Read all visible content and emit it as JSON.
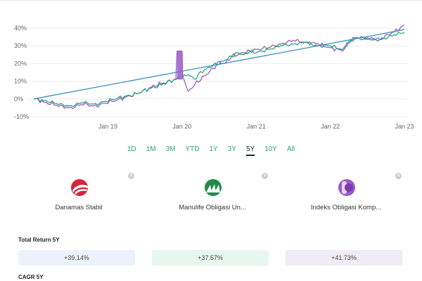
{
  "chart_data": {
    "type": "line",
    "y_ticks": [
      "40%",
      "30%",
      "20%",
      "10%",
      "0%",
      "-10%"
    ],
    "x_ticks": [
      "Jan 19",
      "Jan 20",
      "Jan 21",
      "Jan 22",
      "Jan 23"
    ],
    "x_range": [
      "2018-01",
      "2023-01"
    ],
    "ylim": [
      -10,
      40
    ],
    "grid": true,
    "series": [
      {
        "name": "Danamas Stabil",
        "color": "#3b8fc4",
        "points": [
          [
            0,
            0
          ],
          [
            60,
            39.14
          ]
        ]
      },
      {
        "name": "Manulife Obligasi Unggulan",
        "color": "#2aa67a",
        "points": [
          [
            0,
            0
          ],
          [
            2,
            -1
          ],
          [
            4,
            -3
          ],
          [
            6,
            -4
          ],
          [
            8,
            -2
          ],
          [
            10,
            -3
          ],
          [
            12,
            -1
          ],
          [
            14,
            1
          ],
          [
            16,
            2
          ],
          [
            18,
            5
          ],
          [
            20,
            7
          ],
          [
            22,
            10
          ],
          [
            24,
            12
          ],
          [
            25,
            14
          ],
          [
            26,
            11
          ],
          [
            27,
            15
          ],
          [
            28,
            17
          ],
          [
            29,
            19
          ],
          [
            30,
            20
          ],
          [
            31,
            22
          ],
          [
            32,
            24
          ],
          [
            33,
            26
          ],
          [
            34,
            25
          ],
          [
            35,
            27
          ],
          [
            36,
            26
          ],
          [
            38,
            28
          ],
          [
            40,
            30
          ],
          [
            42,
            31
          ],
          [
            44,
            32
          ],
          [
            46,
            30
          ],
          [
            48,
            30
          ],
          [
            50,
            28
          ],
          [
            51,
            32
          ],
          [
            52,
            34
          ],
          [
            54,
            34
          ],
          [
            56,
            33
          ],
          [
            58,
            36
          ],
          [
            60,
            37.57
          ]
        ]
      },
      {
        "name": "Indeks Obligasi Komposit",
        "color": "#9a5cc6",
        "points": [
          [
            0,
            0
          ],
          [
            2,
            -2
          ],
          [
            4,
            -4
          ],
          [
            6,
            -5
          ],
          [
            8,
            -3
          ],
          [
            10,
            -4
          ],
          [
            12,
            -2
          ],
          [
            14,
            0
          ],
          [
            16,
            2
          ],
          [
            18,
            5
          ],
          [
            20,
            8
          ],
          [
            22,
            10
          ],
          [
            23,
            11
          ],
          [
            23.2,
            27
          ],
          [
            24,
            27
          ],
          [
            24.1,
            13
          ],
          [
            25,
            4
          ],
          [
            26,
            8
          ],
          [
            27,
            11
          ],
          [
            28,
            14
          ],
          [
            29,
            17
          ],
          [
            30,
            21
          ],
          [
            31,
            20
          ],
          [
            32,
            24
          ],
          [
            33,
            25
          ],
          [
            34,
            26
          ],
          [
            35,
            27
          ],
          [
            36,
            28
          ],
          [
            38,
            29
          ],
          [
            40,
            31
          ],
          [
            42,
            33
          ],
          [
            44,
            32
          ],
          [
            46,
            31
          ],
          [
            48,
            29
          ],
          [
            50,
            27
          ],
          [
            51,
            32
          ],
          [
            52,
            35
          ],
          [
            54,
            34
          ],
          [
            56,
            34
          ],
          [
            58,
            37
          ],
          [
            60,
            41.73
          ]
        ]
      }
    ]
  },
  "range_buttons": [
    "1D",
    "1M",
    "3M",
    "YTD",
    "1Y",
    "3Y",
    "5Y",
    "10Y",
    "All"
  ],
  "active_range": "5Y",
  "funds": [
    {
      "name": "Danamas Stabil",
      "bg": "#eaf3fc",
      "logo": "danamas-logo",
      "accent": "#d6243a"
    },
    {
      "name": "Manulife Obligasi Un...",
      "bg": "#e7f6ee",
      "logo": "manulife-logo",
      "accent": "#1f8a4c"
    },
    {
      "name": "Indeks Obligasi Komp...",
      "bg": "#f1ebf7",
      "logo": "index-logo",
      "accent": "#9a5cc6"
    }
  ],
  "total_return": {
    "title": "Total Return 5Y",
    "values": [
      "+39.14%",
      "+37.57%",
      "+41.73%"
    ]
  },
  "cagr": {
    "title": "CAGR 5Y"
  }
}
